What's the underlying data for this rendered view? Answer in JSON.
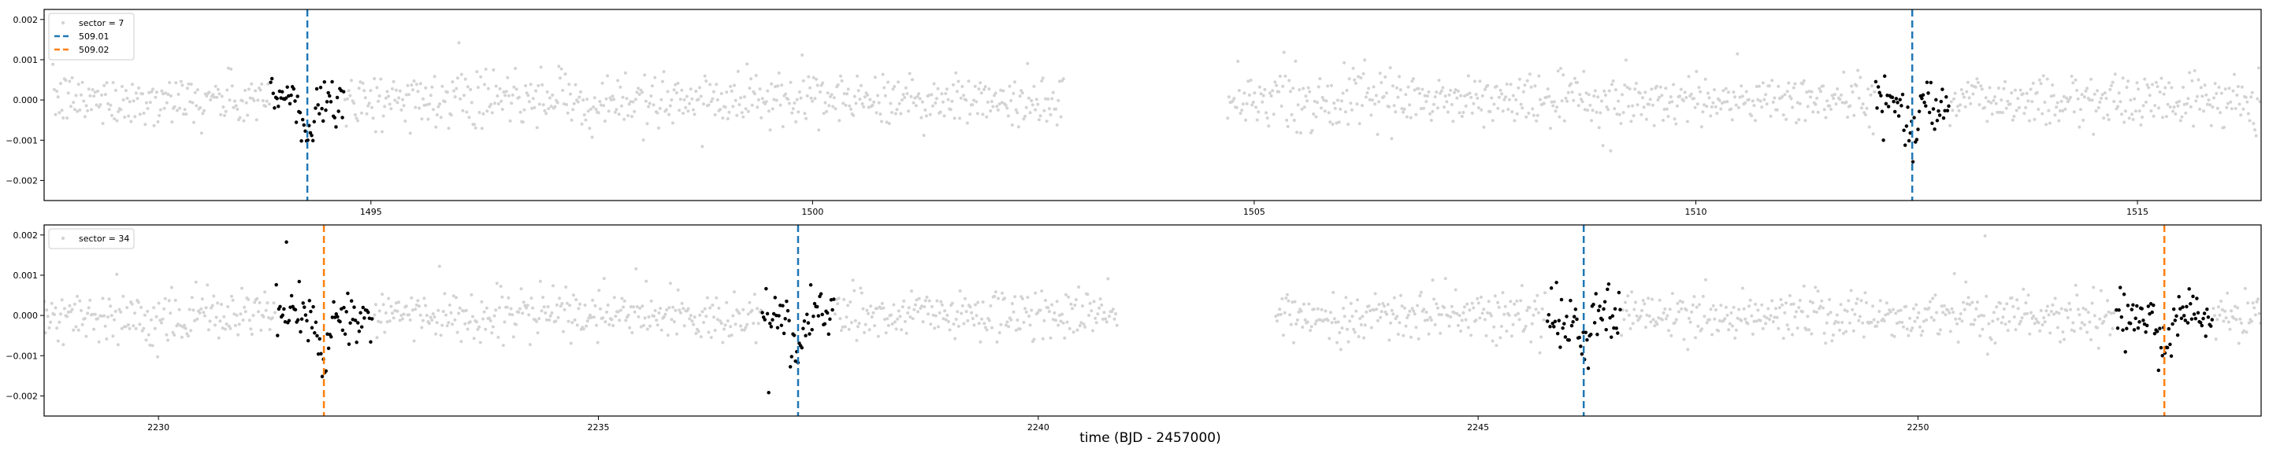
{
  "figure": {
    "xlabel": "time (BJD - 2457000)"
  },
  "chart_data": [
    {
      "type": "scatter",
      "panel": "top",
      "title": "",
      "xlabel": "",
      "ylabel": "",
      "xlim": [
        1491.3,
        1516.4
      ],
      "ylim": [
        -0.0025,
        0.00225
      ],
      "x_ticks": [
        1495,
        1500,
        1505,
        1510,
        1515
      ],
      "x_tick_labels": [
        "1495",
        "1500",
        "1505",
        "1510",
        "1515"
      ],
      "y_ticks": [
        -0.002,
        -0.001,
        0.0,
        0.001,
        0.002
      ],
      "y_tick_labels": [
        "−0.002",
        "−0.001",
        "0.000",
        "0.001",
        "0.002"
      ],
      "grid": false,
      "legend_position": "top-left",
      "legend": [
        {
          "label": "sector = 7",
          "kind": "marker",
          "color": "#d3d3d3"
        },
        {
          "label": "509.01",
          "kind": "dashed-line",
          "color": "#1f77b4"
        },
        {
          "label": "509.02",
          "kind": "dashed-line",
          "color": "#ff7f0e"
        }
      ],
      "background_segments": [
        [
          1491.4,
          1502.85
        ],
        [
          1504.7,
          1516.4
        ]
      ],
      "background_scatter": 0.00032,
      "transits": [
        {
          "center": 1494.28,
          "color": "#1f77b4",
          "depth": 0.00085,
          "duration": 0.18,
          "window": 0.42
        },
        {
          "center": 1512.45,
          "color": "#1f77b4",
          "depth": 0.00085,
          "duration": 0.18,
          "window": 0.42
        }
      ]
    },
    {
      "type": "scatter",
      "panel": "bottom",
      "title": "",
      "xlabel": "",
      "ylabel": "",
      "xlim": [
        2228.7,
        2253.9
      ],
      "ylim": [
        -0.0025,
        0.00225
      ],
      "x_ticks": [
        2230,
        2235,
        2240,
        2245,
        2250
      ],
      "x_tick_labels": [
        "2230",
        "2235",
        "2240",
        "2245",
        "2250"
      ],
      "y_ticks": [
        -0.002,
        -0.001,
        0.0,
        0.001,
        0.002
      ],
      "y_tick_labels": [
        "−0.002",
        "−0.001",
        "0.000",
        "0.001",
        "0.002"
      ],
      "grid": false,
      "legend_position": "top-left",
      "legend": [
        {
          "label": "sector = 34",
          "kind": "marker",
          "color": "#d3d3d3"
        }
      ],
      "background_segments": [
        [
          2228.7,
          2240.9
        ],
        [
          2242.7,
          2253.9
        ]
      ],
      "background_scatter": 0.00032,
      "transits": [
        {
          "center": 2231.88,
          "color": "#ff7f0e",
          "depth": 0.0009,
          "duration": 0.22,
          "window": 0.55
        },
        {
          "center": 2237.27,
          "color": "#1f77b4",
          "depth": 0.00085,
          "duration": 0.18,
          "window": 0.42
        },
        {
          "center": 2246.2,
          "color": "#1f77b4",
          "depth": 0.00085,
          "duration": 0.18,
          "window": 0.42
        },
        {
          "center": 2252.8,
          "color": "#ff7f0e",
          "depth": 0.0009,
          "duration": 0.22,
          "window": 0.55
        }
      ]
    }
  ]
}
